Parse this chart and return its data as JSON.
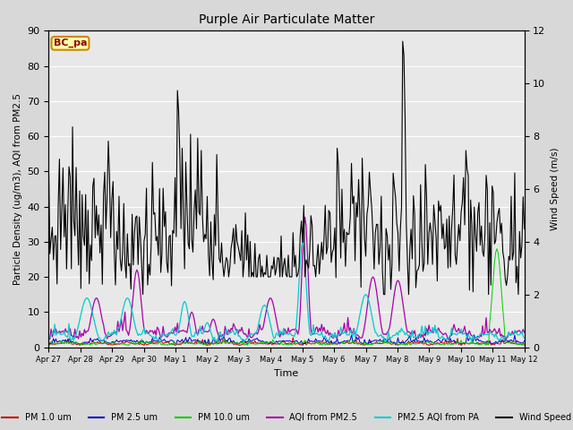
{
  "title": "Purple Air Particulate Matter",
  "ylabel_left": "Particle Density (ug/m3), AQI from PM2.5",
  "ylabel_right": "Wind Speed (m/s)",
  "xlabel": "Time",
  "ylim_left": [
    0,
    90
  ],
  "ylim_right": [
    0,
    12
  ],
  "annotation_text": "BC_pa",
  "xtick_labels": [
    "Apr 27",
    "Apr 28",
    "Apr 29",
    "Apr 30",
    "May 1",
    "May 2",
    "May 3",
    "May 4",
    "May 5",
    "May 6",
    "May 7",
    "May 8",
    "May 9",
    "May 10",
    "May 11",
    "May 12"
  ],
  "colors": {
    "pm1": "#cc0000",
    "pm25": "#0000cc",
    "pm10": "#00cc00",
    "aqi_pm25": "#aa00aa",
    "pm25_aqi_pa": "#00cccc",
    "wind": "#000000"
  },
  "legend_labels": [
    "PM 1.0 um",
    "PM 2.5 um",
    "PM 10.0 um",
    "AQI from PM2.5",
    "PM2.5 AQI from PA",
    "Wind Speed"
  ],
  "background_color": "#d8d8d8",
  "plot_bg": "#e8e8e8",
  "grid_color": "#ffffff",
  "n_points": 400
}
